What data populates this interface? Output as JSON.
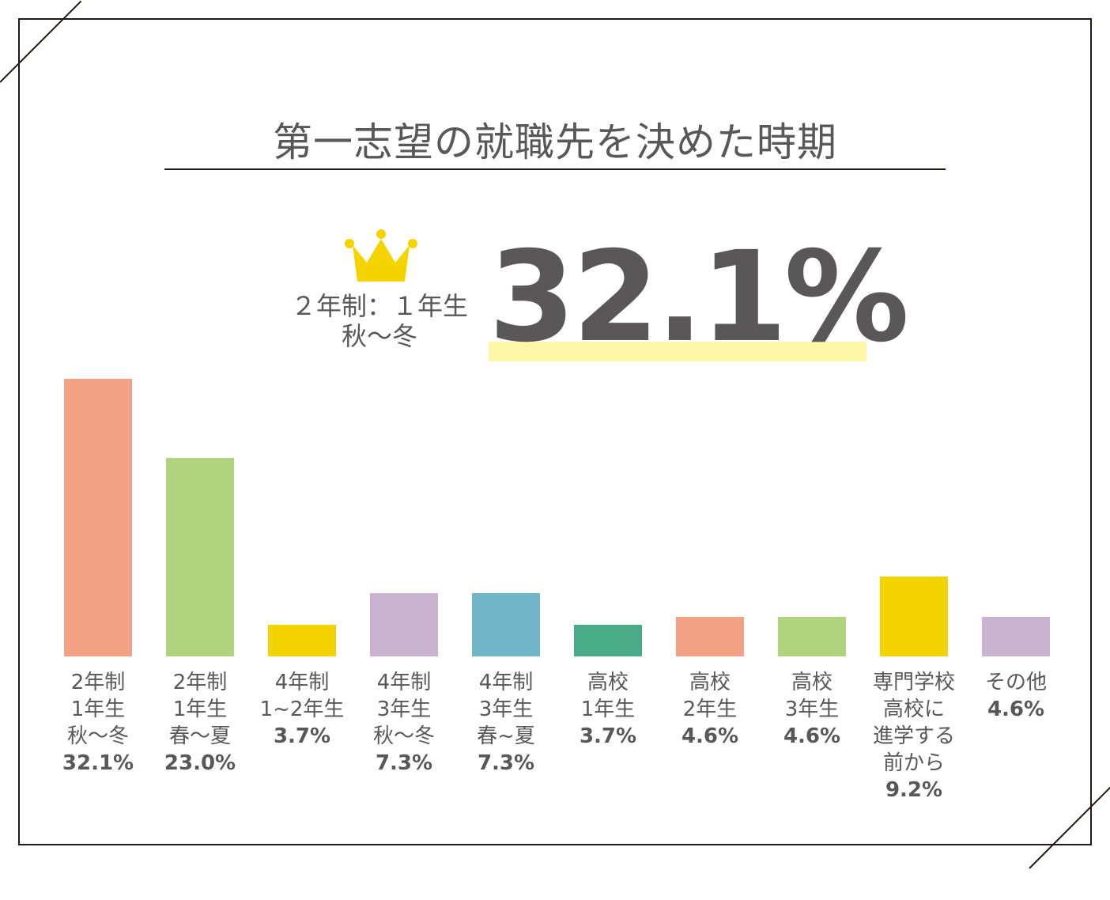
{
  "chart_data": {
    "type": "bar",
    "title": "第一志望の就職先を決めた時期",
    "highlight": {
      "label_lines": [
        "２年制：１年生",
        "秋〜冬"
      ],
      "value": "32.1%"
    },
    "categories": [
      [
        "2年制",
        "1年生",
        "秋〜冬"
      ],
      [
        "2年制",
        "1年生",
        "春〜夏"
      ],
      [
        "4年制",
        "1~2年生"
      ],
      [
        "4年制",
        "3年生",
        "秋〜冬"
      ],
      [
        "4年制",
        "3年生",
        "春~夏"
      ],
      [
        "高校",
        "1年生"
      ],
      [
        "高校",
        "2年生"
      ],
      [
        "高校",
        "3年生"
      ],
      [
        "専門学校",
        "高校に",
        "進学する",
        "前から"
      ],
      [
        "その他"
      ]
    ],
    "values": [
      32.1,
      23.0,
      3.7,
      7.3,
      7.3,
      3.7,
      4.6,
      4.6,
      9.2,
      4.6
    ],
    "value_labels": [
      "32.1%",
      "23.0%",
      "3.7%",
      "7.3%",
      "7.3%",
      "3.7%",
      "4.6%",
      "4.6%",
      "9.2%",
      "4.6%"
    ],
    "colors": [
      "#f2a183",
      "#b0d47d",
      "#f2d200",
      "#c9b3d0",
      "#72b4c8",
      "#4aab88",
      "#f2a183",
      "#b0d47d",
      "#f2d200",
      "#c9b3d0"
    ],
    "unit": "%",
    "ylim": [
      0,
      32.1
    ],
    "grid": false
  }
}
